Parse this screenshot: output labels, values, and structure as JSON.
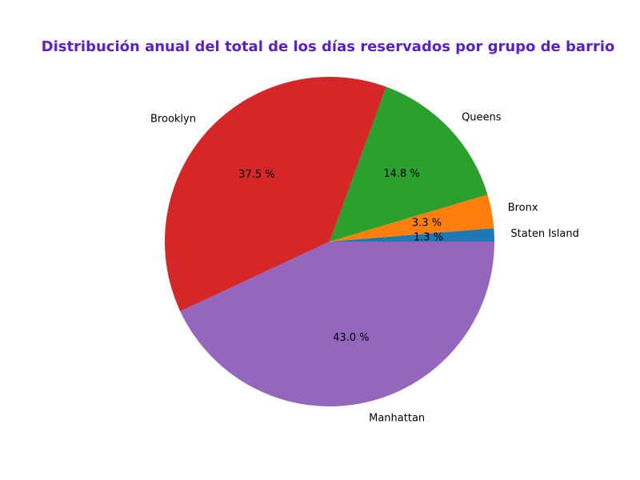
{
  "chart_data": {
    "type": "pie",
    "title": "Distribución anual del total de los días reservados por grupo de barrio",
    "title_color": "#5b20c8",
    "start_angle_deg": 0,
    "direction": "counterclockwise",
    "pct_suffix": " %",
    "slices": [
      {
        "label": "Staten Island",
        "value": 1.3,
        "pct_label": "1.3 %",
        "color": "#1f77b4"
      },
      {
        "label": "Bronx",
        "value": 3.3,
        "pct_label": "3.3 %",
        "color": "#ff7f0e"
      },
      {
        "label": "Queens",
        "value": 14.8,
        "pct_label": "14.8 %",
        "color": "#2ca02c"
      },
      {
        "label": "Brooklyn",
        "value": 37.5,
        "pct_label": "37.5 %",
        "color": "#d62728"
      },
      {
        "label": "Manhattan",
        "value": 43.0,
        "pct_label": "43.0 %",
        "color": "#9467bd"
      }
    ]
  }
}
